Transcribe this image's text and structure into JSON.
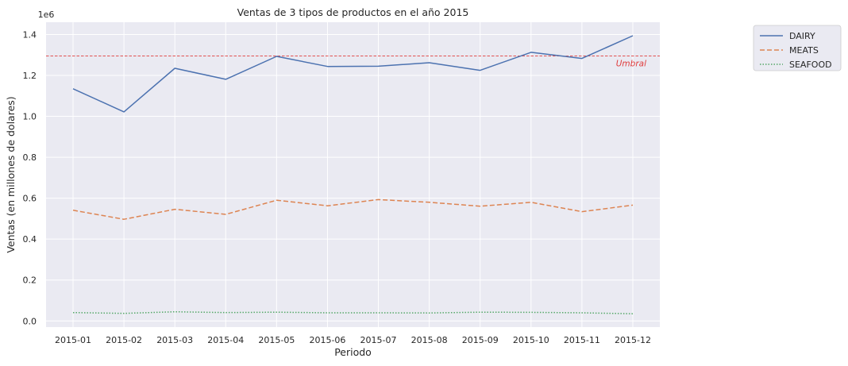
{
  "chart_data": {
    "type": "line",
    "title": "Ventas de 3 tipos de productos en el año 2015",
    "xlabel": "Periodo",
    "ylabel": "Ventas (en millones de dolares)",
    "y_offset_label": "1e6",
    "categories": [
      "2015-01",
      "2015-02",
      "2015-03",
      "2015-04",
      "2015-05",
      "2015-06",
      "2015-07",
      "2015-08",
      "2015-09",
      "2015-10",
      "2015-11",
      "2015-12"
    ],
    "yticks": [
      "0.0",
      "0.2",
      "0.4",
      "0.6",
      "0.8",
      "1.0",
      "1.2",
      "1.4"
    ],
    "ylim": [
      -0.03,
      1.46
    ],
    "grid": true,
    "legend_position": "outside-top-right",
    "series": [
      {
        "name": "DAIRY",
        "color": "#4c72b0",
        "style": "solid",
        "values": [
          1.135,
          1.022,
          1.235,
          1.181,
          1.293,
          1.244,
          1.245,
          1.262,
          1.225,
          1.313,
          1.283,
          1.394
        ]
      },
      {
        "name": "MEATS",
        "color": "#dd8452",
        "style": "dashed",
        "values": [
          0.541,
          0.497,
          0.546,
          0.521,
          0.59,
          0.563,
          0.593,
          0.58,
          0.561,
          0.58,
          0.534,
          0.566
        ]
      },
      {
        "name": "SEAFOOD",
        "color": "#55a868",
        "style": "dotted",
        "values": [
          0.041,
          0.037,
          0.045,
          0.041,
          0.043,
          0.04,
          0.04,
          0.039,
          0.043,
          0.042,
          0.04,
          0.035
        ]
      }
    ],
    "threshold": {
      "value": 1.295,
      "label": "Umbral",
      "color": "#e03c3c"
    }
  }
}
